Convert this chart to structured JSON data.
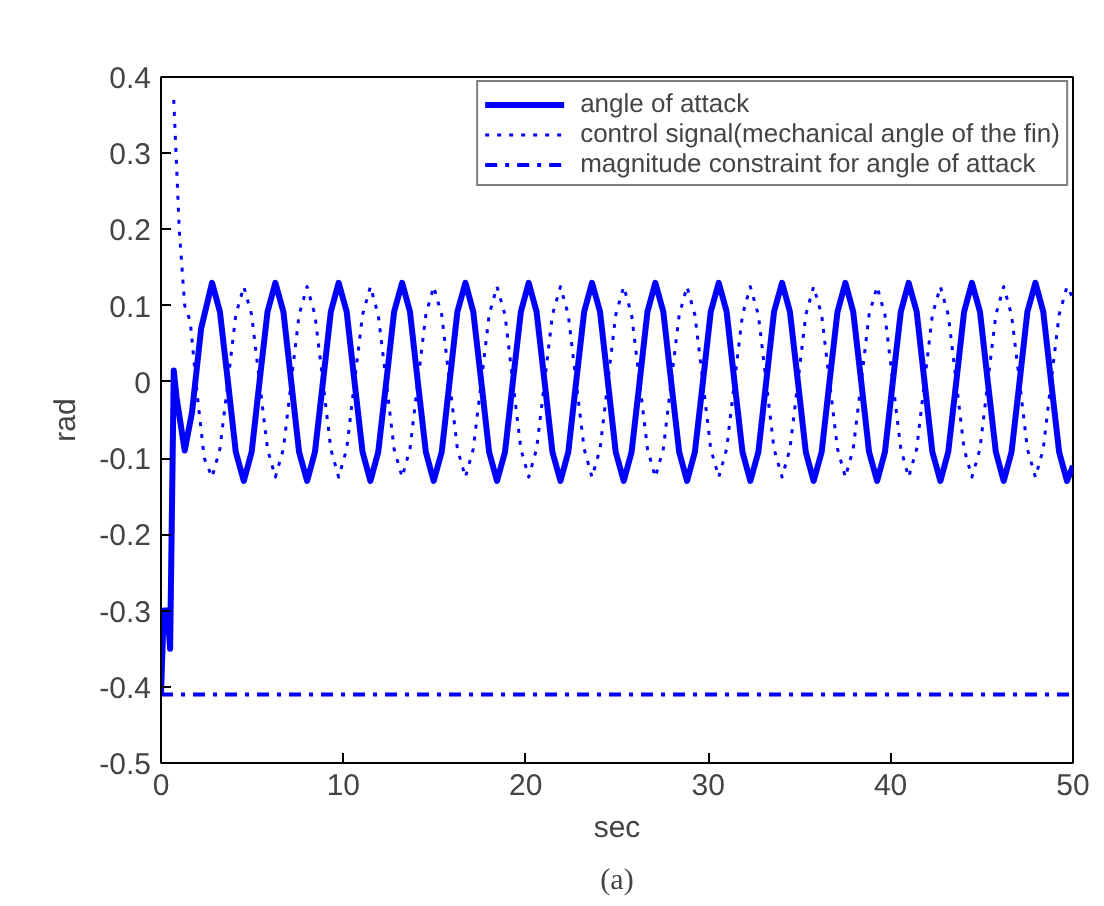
{
  "chart_data": {
    "type": "line",
    "xlabel": "sec",
    "ylabel": "rad",
    "annotations": [
      "(a)"
    ],
    "xlim": [
      0,
      50
    ],
    "ylim": [
      -0.5,
      0.4
    ],
    "xticks": [
      0,
      10,
      20,
      30,
      40,
      50
    ],
    "yticks": [
      -0.5,
      -0.4,
      -0.3,
      -0.2,
      -0.1,
      0,
      0.1,
      0.2,
      0.3,
      0.4
    ],
    "grid": false,
    "legend": "top right",
    "marker": "none",
    "series": [
      {
        "name": "angle of attack",
        "color": "#0000ff",
        "line_style": "solid",
        "x": [
          0,
          0.15,
          0.35,
          0.5,
          0.7,
          0.85,
          1.3,
          1.7,
          2.2,
          2.8,
          3.23,
          3.67,
          4.1,
          4.54,
          4.97,
          5.4,
          5.84,
          6.27,
          6.71,
          7.14,
          7.57,
          8.01,
          8.44,
          8.88,
          9.31,
          9.74,
          10.18,
          10.61,
          11.05,
          11.48,
          11.91,
          12.35,
          12.78,
          13.22,
          13.65,
          14.08,
          14.52,
          14.95,
          15.39,
          15.82,
          16.25,
          16.69,
          17.12,
          17.56,
          17.99,
          18.42,
          18.86,
          19.29,
          19.73,
          20.16,
          20.59,
          21.03,
          21.46,
          21.9,
          22.33,
          22.76,
          23.2,
          23.63,
          24.07,
          24.5,
          24.93,
          25.37,
          25.8,
          26.24,
          26.67,
          27.1,
          27.54,
          27.97,
          28.41,
          28.84,
          29.27,
          29.71,
          30.14,
          30.58,
          31.01,
          31.44,
          31.88,
          32.31,
          32.75,
          33.18,
          33.61,
          34.05,
          34.48,
          34.92,
          35.35,
          35.78,
          36.22,
          36.65,
          37.09,
          37.52,
          37.95,
          38.39,
          38.82,
          39.26,
          39.69,
          40.12,
          40.56,
          40.99,
          41.43,
          41.86,
          42.29,
          42.73,
          43.16,
          43.6,
          44.03,
          44.46,
          44.9,
          45.33,
          45.77,
          46.2,
          46.63,
          47.07,
          47.5,
          47.94,
          48.37,
          48.8,
          49.24,
          49.67,
          50
        ],
        "values": [
          -0.41,
          -0.3,
          -0.3,
          -0.35,
          0.015,
          -0.02,
          -0.09,
          -0.04,
          0.07,
          0.13,
          0.092,
          0,
          -0.092,
          -0.13,
          -0.092,
          0,
          0.092,
          0.13,
          0.092,
          0,
          -0.092,
          -0.13,
          -0.092,
          0,
          0.092,
          0.13,
          0.092,
          0,
          -0.092,
          -0.13,
          -0.092,
          0,
          0.092,
          0.13,
          0.092,
          0,
          -0.092,
          -0.13,
          -0.092,
          0,
          0.092,
          0.13,
          0.092,
          0,
          -0.092,
          -0.13,
          -0.092,
          0,
          0.092,
          0.13,
          0.092,
          0,
          -0.092,
          -0.13,
          -0.092,
          0,
          0.092,
          0.13,
          0.092,
          0,
          -0.092,
          -0.13,
          -0.092,
          0,
          0.092,
          0.13,
          0.092,
          0,
          -0.092,
          -0.13,
          -0.092,
          0,
          0.092,
          0.13,
          0.092,
          0,
          -0.092,
          -0.13,
          -0.092,
          0,
          0.092,
          0.13,
          0.092,
          0,
          -0.092,
          -0.13,
          -0.092,
          0,
          0.092,
          0.13,
          0.092,
          0,
          -0.092,
          -0.13,
          -0.092,
          0,
          0.092,
          0.13,
          0.092,
          0,
          -0.092,
          -0.13,
          -0.092,
          0,
          0.092,
          0.13,
          0.092,
          0,
          -0.092,
          -0.13,
          -0.092,
          0,
          0.092,
          0.13,
          0.092,
          0,
          -0.092,
          -0.13,
          -0.11
        ]
      },
      {
        "name": "control signal(mechanical angle of the fin)",
        "color": "#0000ff",
        "line_style": "dotted",
        "x": [
          0.7,
          1.0,
          1.3,
          1.6,
          2.0,
          2.37,
          2.8,
          3.23,
          3.67,
          4.1,
          4.54,
          4.97,
          5.4,
          5.84,
          6.27,
          6.71,
          7.14,
          7.57,
          8.01,
          8.44,
          8.88,
          9.31,
          9.74,
          10.18,
          10.61,
          11.05,
          11.48,
          11.91,
          12.35,
          12.78,
          13.22,
          13.65,
          14.08,
          14.52,
          14.95,
          15.39,
          15.82,
          16.25,
          16.69,
          17.12,
          17.56,
          17.99,
          18.42,
          18.86,
          19.29,
          19.73,
          20.16,
          20.59,
          21.03,
          21.46,
          21.9,
          22.33,
          22.76,
          23.2,
          23.63,
          24.07,
          24.5,
          24.93,
          25.37,
          25.8,
          26.24,
          26.67,
          27.1,
          27.54,
          27.97,
          28.41,
          28.84,
          29.27,
          29.71,
          30.14,
          30.58,
          31.01,
          31.44,
          31.88,
          32.31,
          32.75,
          33.18,
          33.61,
          34.05,
          34.48,
          34.92,
          35.35,
          35.78,
          36.22,
          36.65,
          37.09,
          37.52,
          37.95,
          38.39,
          38.82,
          39.26,
          39.69,
          40.12,
          40.56,
          40.99,
          41.43,
          41.86,
          42.29,
          42.73,
          43.16,
          43.6,
          44.03,
          44.46,
          44.9,
          45.33,
          45.77,
          46.2,
          46.63,
          47.07,
          47.5,
          47.94,
          48.37,
          48.8,
          49.24,
          49.67,
          50
        ],
        "values": [
          0.37,
          0.2,
          0.1,
          0.08,
          -0.02,
          -0.1,
          -0.125,
          -0.088,
          0,
          0.088,
          0.125,
          0.088,
          0,
          -0.088,
          -0.125,
          -0.088,
          0,
          0.088,
          0.125,
          0.088,
          0,
          -0.088,
          -0.125,
          -0.088,
          0,
          0.088,
          0.125,
          0.088,
          0,
          -0.088,
          -0.125,
          -0.088,
          0,
          0.088,
          0.125,
          0.088,
          0,
          -0.088,
          -0.125,
          -0.088,
          0,
          0.088,
          0.125,
          0.088,
          0,
          -0.088,
          -0.125,
          -0.088,
          0,
          0.088,
          0.125,
          0.088,
          0,
          -0.088,
          -0.125,
          -0.088,
          0,
          0.088,
          0.125,
          0.088,
          0,
          -0.088,
          -0.125,
          -0.088,
          0,
          0.088,
          0.125,
          0.088,
          0,
          -0.088,
          -0.125,
          -0.088,
          0,
          0.088,
          0.125,
          0.088,
          0,
          -0.088,
          -0.125,
          -0.088,
          0,
          0.088,
          0.125,
          0.088,
          0,
          -0.088,
          -0.125,
          -0.088,
          0,
          0.088,
          0.125,
          0.088,
          0,
          -0.088,
          -0.125,
          -0.088,
          0,
          0.088,
          0.125,
          0.088,
          0,
          -0.088,
          -0.125,
          -0.088,
          0,
          0.088,
          0.125,
          0.088,
          0,
          -0.088,
          -0.125,
          -0.088,
          0,
          0.088,
          0.125,
          0.11
        ]
      },
      {
        "name": "magnitude constraint for angle of attack",
        "color": "#0000ff",
        "line_style": "dashdot",
        "x": [
          0,
          50
        ],
        "values": [
          -0.41,
          -0.41
        ]
      }
    ]
  }
}
